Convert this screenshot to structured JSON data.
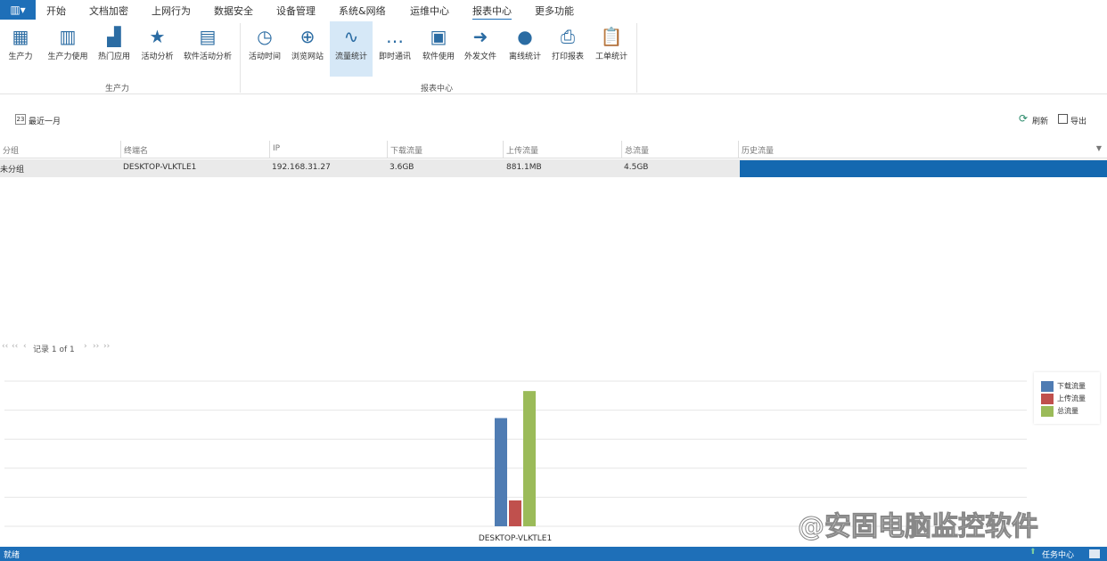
{
  "menu": {
    "app_icon": "app-menu-icon",
    "items": [
      "开始",
      "文档加密",
      "上网行为",
      "数据安全",
      "设备管理",
      "系统&网络",
      "运维中心",
      "报表中心",
      "更多功能"
    ],
    "active": "报表中心"
  },
  "ribbon": {
    "groups": [
      {
        "label": "生产力"
      },
      {
        "label": "报表中心"
      }
    ],
    "buttons": [
      {
        "label": "生产力",
        "icon": "grid-icon"
      },
      {
        "label": "生产力使用",
        "icon": "bar-doc-icon"
      },
      {
        "label": "热门应用",
        "icon": "hot-app-icon"
      },
      {
        "label": "活动分析",
        "icon": "activity-star-icon"
      },
      {
        "label": "软件活动分析",
        "icon": "software-chart-icon"
      },
      {
        "label": "活动时间",
        "icon": "history-clock-icon"
      },
      {
        "label": "浏览网站",
        "icon": "globe-icon"
      },
      {
        "label": "流量统计",
        "icon": "traffic-chart-icon"
      },
      {
        "label": "即时通讯",
        "icon": "chat-icon"
      },
      {
        "label": "软件使用",
        "icon": "window-user-icon"
      },
      {
        "label": "外发文件",
        "icon": "file-send-icon"
      },
      {
        "label": "离线统计",
        "icon": "user-info-icon"
      },
      {
        "label": "打印报表",
        "icon": "printer-icon"
      },
      {
        "label": "工单统计",
        "icon": "clipboard-icon"
      }
    ],
    "selected": "流量统计"
  },
  "toolbar": {
    "date_range": "最近一月",
    "refresh": "刷新",
    "export": "导出"
  },
  "table": {
    "columns": [
      "分组",
      "终端名",
      "IP",
      "下载流量",
      "上传流量",
      "总流量",
      "历史流量"
    ],
    "rows": [
      {
        "group": "未分组",
        "terminal": "DESKTOP-VLKTLE1",
        "ip": "192.168.31.27",
        "download": "3.6GB",
        "upload": "881.1MB",
        "total": "4.5GB"
      }
    ]
  },
  "pager": {
    "record": "记录 1 of 1"
  },
  "chart_data": {
    "type": "bar",
    "categories": [
      "DESKTOP-VLKTLE1"
    ],
    "series": [
      {
        "name": "下载流量",
        "values": [
          3.6
        ],
        "color": "#4f7cb3"
      },
      {
        "name": "上传流量",
        "values": [
          0.86
        ],
        "color": "#c0504d"
      },
      {
        "name": "总流量",
        "values": [
          4.5
        ],
        "color": "#9bbb59"
      }
    ],
    "unit": "GB",
    "ylim": [
      0,
      4.83
    ],
    "grid": true,
    "legend": "top-right"
  },
  "status": {
    "left": "就绪",
    "task_center": "任务中心"
  },
  "watermark": "@安固电脑监控软件",
  "colors": {
    "accent": "#1e6fb8",
    "selected_bg": "#d6e8f7"
  }
}
